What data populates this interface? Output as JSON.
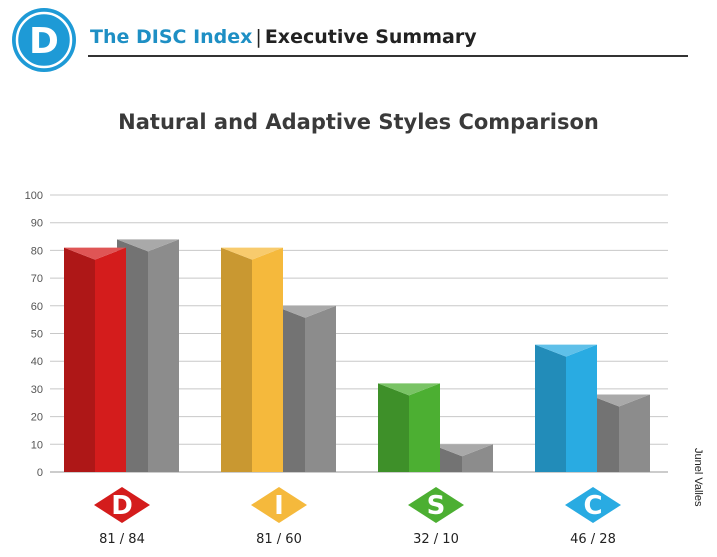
{
  "header": {
    "logo_letter": "D",
    "product": "The DISC Index",
    "separator": "|",
    "section": "Executive Summary"
  },
  "author": "Junel Valles",
  "colors": {
    "brand_blue": "#1e8fc4",
    "adaptive_gray": "#8a8a8a"
  },
  "chart_data": {
    "type": "bar",
    "title": "Natural and Adaptive Styles Comparison",
    "ylim": [
      0,
      100
    ],
    "yticks": [
      0,
      10,
      20,
      30,
      40,
      50,
      60,
      70,
      80,
      90,
      100
    ],
    "grid": true,
    "categories": [
      "D",
      "I",
      "S",
      "C"
    ],
    "series": [
      {
        "values": [
          81,
          81,
          32,
          46
        ]
      },
      {
        "values": [
          84,
          60,
          10,
          28
        ]
      }
    ],
    "category_labels": [
      "81 / 84",
      "81 / 60",
      "32 / 10",
      "46 / 28"
    ],
    "category_colors": [
      "#d41c1c",
      "#f5b93c",
      "#4caf32",
      "#29abe2"
    ]
  }
}
